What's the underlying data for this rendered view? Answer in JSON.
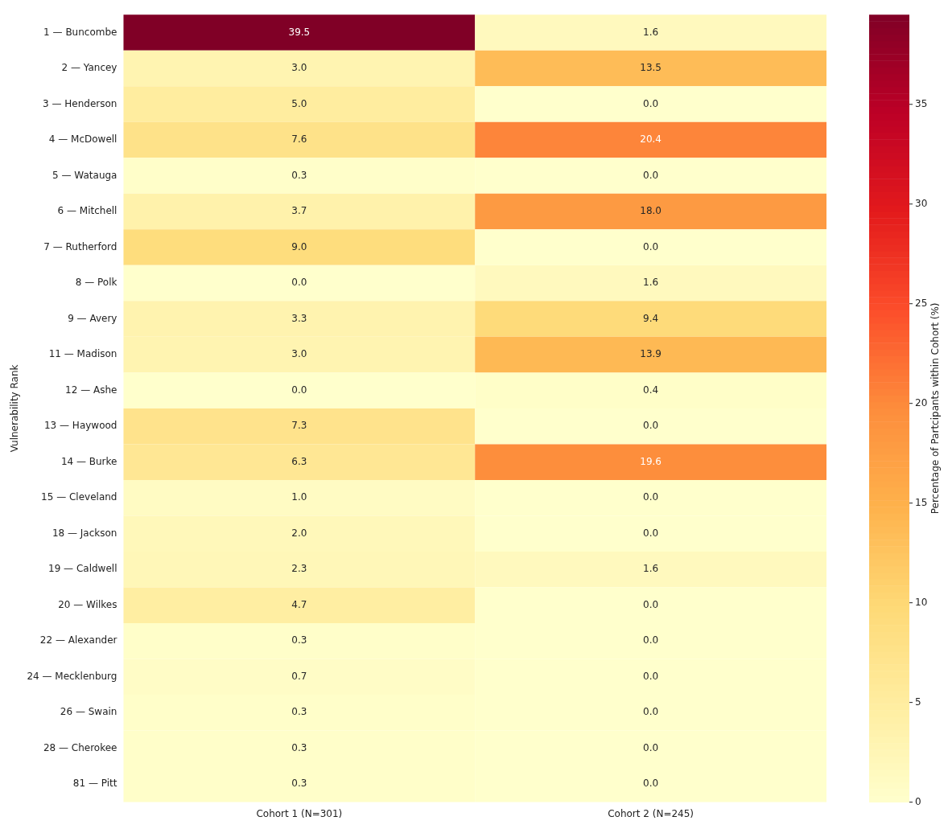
{
  "chart_data": {
    "type": "heatmap",
    "ylabel": "Vulnerability Rank",
    "clabel": "Percentage of Partcipants within Cohort (%)",
    "categories": [
      "Cohort 1 (N=301)",
      "Cohort 2 (N=245)"
    ],
    "y_categories": [
      "1 — Buncombe",
      "2 — Yancey",
      "3 — Henderson",
      "4 — McDowell",
      "5 — Watauga",
      "6 — Mitchell",
      "7 — Rutherford",
      "8 — Polk",
      "9 — Avery",
      "11 — Madison",
      "12 — Ashe",
      "13 — Haywood",
      "14 — Burke",
      "15 — Cleveland",
      "18 — Jackson",
      "19 — Caldwell",
      "20 — Wilkes",
      "22 — Alexander",
      "24 — Mecklenburg",
      "26 — Swain",
      "28 — Cherokee",
      "81 — Pitt"
    ],
    "cells": [
      [
        39.5,
        1.6
      ],
      [
        3.0,
        13.5
      ],
      [
        5.0,
        0.0
      ],
      [
        7.6,
        20.4
      ],
      [
        0.3,
        0.0
      ],
      [
        3.7,
        18.0
      ],
      [
        9.0,
        0.0
      ],
      [
        0.0,
        1.6
      ],
      [
        3.3,
        9.4
      ],
      [
        3.0,
        13.9
      ],
      [
        0.0,
        0.4
      ],
      [
        7.3,
        0.0
      ],
      [
        6.3,
        19.6
      ],
      [
        1.0,
        0.0
      ],
      [
        2.0,
        0.0
      ],
      [
        2.3,
        1.6
      ],
      [
        4.7,
        0.0
      ],
      [
        0.3,
        0.0
      ],
      [
        0.7,
        0.0
      ],
      [
        0.3,
        0.0
      ],
      [
        0.3,
        0.0
      ],
      [
        0.3,
        0.0
      ]
    ],
    "cell_labels": [
      [
        "39.5",
        "1.6"
      ],
      [
        "3.0",
        "13.5"
      ],
      [
        "5.0",
        "0.0"
      ],
      [
        "7.6",
        "20.4"
      ],
      [
        "0.3",
        "0.0"
      ],
      [
        "3.7",
        "18.0"
      ],
      [
        "9.0",
        "0.0"
      ],
      [
        "0.0",
        "1.6"
      ],
      [
        "3.3",
        "9.4"
      ],
      [
        "3.0",
        "13.9"
      ],
      [
        "0.0",
        "0.4"
      ],
      [
        "7.3",
        "0.0"
      ],
      [
        "6.3",
        "19.6"
      ],
      [
        "1.0",
        "0.0"
      ],
      [
        "2.0",
        "0.0"
      ],
      [
        "2.3",
        "1.6"
      ],
      [
        "4.7",
        "0.0"
      ],
      [
        "0.3",
        "0.0"
      ],
      [
        "0.7",
        "0.0"
      ],
      [
        "0.3",
        "0.0"
      ],
      [
        "0.3",
        "0.0"
      ],
      [
        "0.3",
        "0.0"
      ]
    ],
    "clim": [
      0,
      39.5
    ],
    "cticks": [
      0,
      5,
      10,
      15,
      20,
      25,
      30,
      35
    ]
  }
}
